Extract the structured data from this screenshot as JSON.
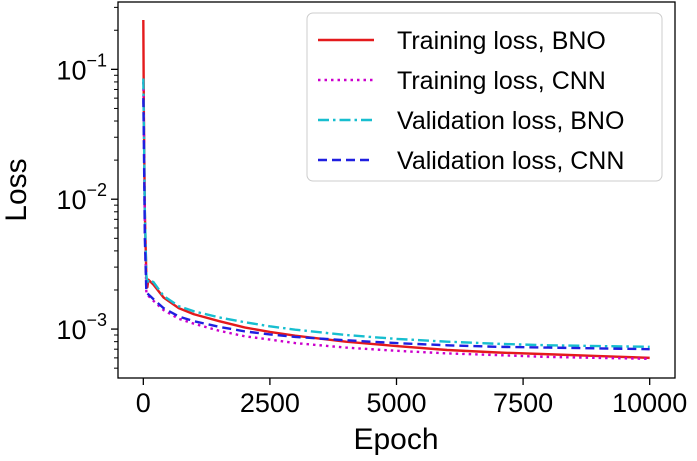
{
  "chart_data": {
    "type": "line",
    "title": "",
    "xlabel": "Epoch",
    "ylabel": "Loss",
    "xscale": "linear",
    "yscale": "log",
    "xlim": [
      -500,
      10500
    ],
    "ylim": [
      0.00042,
      0.33
    ],
    "xticks": [
      0,
      2500,
      5000,
      7500,
      10000
    ],
    "xtick_labels": [
      "0",
      "2500",
      "5000",
      "7500",
      "10000"
    ],
    "yticks": [
      0.1,
      0.01,
      0.001
    ],
    "ytick_labels": [
      {
        "base": "10",
        "exp": "−1"
      },
      {
        "base": "10",
        "exp": "−2"
      },
      {
        "base": "10",
        "exp": "−3"
      }
    ],
    "grid": false,
    "legend_position": "top-right",
    "series": [
      {
        "name": "Training loss, BNO",
        "color": "#e41a1c",
        "style": "solid",
        "x": [
          0,
          10,
          30,
          60,
          80,
          100,
          200,
          400,
          700,
          1000,
          1500,
          2000,
          2500,
          3000,
          4000,
          5000,
          6000,
          7000,
          8000,
          9000,
          10000
        ],
        "y": [
          0.24,
          0.05,
          0.008,
          0.0025,
          0.0021,
          0.0024,
          0.0022,
          0.00175,
          0.00145,
          0.0013,
          0.00115,
          0.00103,
          0.00095,
          0.00089,
          0.0008,
          0.00074,
          0.00069,
          0.00066,
          0.00064,
          0.00062,
          0.0006
        ]
      },
      {
        "name": "Training loss, CNN",
        "color": "#cc00cc",
        "style": "dotted",
        "x": [
          0,
          10,
          30,
          60,
          100,
          200,
          400,
          700,
          1000,
          1500,
          2000,
          2500,
          3000,
          4000,
          5000,
          6000,
          7000,
          8000,
          9000,
          10000
        ],
        "y": [
          0.08,
          0.04,
          0.006,
          0.0019,
          0.0018,
          0.00165,
          0.0014,
          0.0012,
          0.0011,
          0.00097,
          0.00088,
          0.00083,
          0.00078,
          0.00072,
          0.00068,
          0.00065,
          0.00063,
          0.00061,
          0.0006,
          0.00059
        ]
      },
      {
        "name": "Validation loss, BNO",
        "color": "#17becf",
        "style": "dashdot",
        "x": [
          0,
          10,
          30,
          60,
          80,
          100,
          200,
          400,
          700,
          1000,
          1500,
          2000,
          2500,
          3000,
          4000,
          5000,
          6000,
          7000,
          8000,
          9000,
          10000
        ],
        "y": [
          0.085,
          0.04,
          0.008,
          0.0026,
          0.0022,
          0.0024,
          0.0023,
          0.0018,
          0.0015,
          0.00137,
          0.00123,
          0.00113,
          0.00105,
          0.00099,
          0.0009,
          0.00084,
          0.0008,
          0.00077,
          0.00075,
          0.00074,
          0.00073
        ]
      },
      {
        "name": "Validation loss, CNN",
        "color": "#1f1fe0",
        "style": "dashed",
        "x": [
          0,
          10,
          30,
          60,
          100,
          200,
          400,
          700,
          1000,
          1500,
          2000,
          2500,
          3000,
          4000,
          5000,
          6000,
          7000,
          8000,
          9000,
          10000
        ],
        "y": [
          0.06,
          0.03,
          0.005,
          0.0019,
          0.00185,
          0.0017,
          0.00145,
          0.00125,
          0.00115,
          0.00104,
          0.00096,
          0.00091,
          0.00087,
          0.00082,
          0.00078,
          0.00075,
          0.00073,
          0.00072,
          0.00071,
          0.0007
        ]
      }
    ]
  }
}
